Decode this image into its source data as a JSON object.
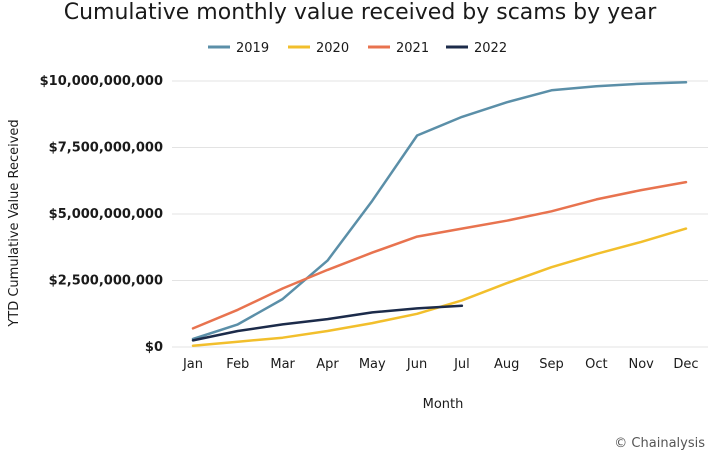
{
  "chart_data": {
    "type": "line",
    "title": "Cumulative monthly value received by scams by year",
    "xlabel": "Month",
    "ylabel": "YTD Cumulative Value Received",
    "categories": [
      "Jan",
      "Feb",
      "Mar",
      "Apr",
      "May",
      "Jun",
      "Jul",
      "Aug",
      "Sep",
      "Oct",
      "Nov",
      "Dec"
    ],
    "ylim": [
      0,
      10000000000
    ],
    "yticks": [
      0,
      2500000000,
      5000000000,
      7500000000,
      10000000000
    ],
    "ytick_labels": [
      "$0",
      "$2,500,000,000",
      "$5,000,000,000",
      "$7,500,000,000",
      "$10,000,000,000"
    ],
    "grid": true,
    "legend_position": "top",
    "series": [
      {
        "name": "2019",
        "color": "#5b8fa8",
        "values": [
          300000000,
          850000000,
          1800000000,
          3250000000,
          5500000000,
          7950000000,
          8650000000,
          9200000000,
          9650000000,
          9800000000,
          9900000000,
          9950000000
        ]
      },
      {
        "name": "2020",
        "color": "#f2bf2c",
        "values": [
          50000000,
          200000000,
          350000000,
          600000000,
          900000000,
          1250000000,
          1750000000,
          2400000000,
          3000000000,
          3500000000,
          3950000000,
          4450000000
        ]
      },
      {
        "name": "2021",
        "color": "#e8734f",
        "values": [
          700000000,
          1400000000,
          2200000000,
          2900000000,
          3550000000,
          4150000000,
          4450000000,
          4750000000,
          5100000000,
          5550000000,
          5900000000,
          6200000000
        ]
      },
      {
        "name": "2022",
        "color": "#1c2b4a",
        "values": [
          250000000,
          600000000,
          850000000,
          1050000000,
          1300000000,
          1450000000,
          1550000000,
          null,
          null,
          null,
          null,
          null
        ]
      }
    ]
  },
  "credit": "© Chainalysis"
}
